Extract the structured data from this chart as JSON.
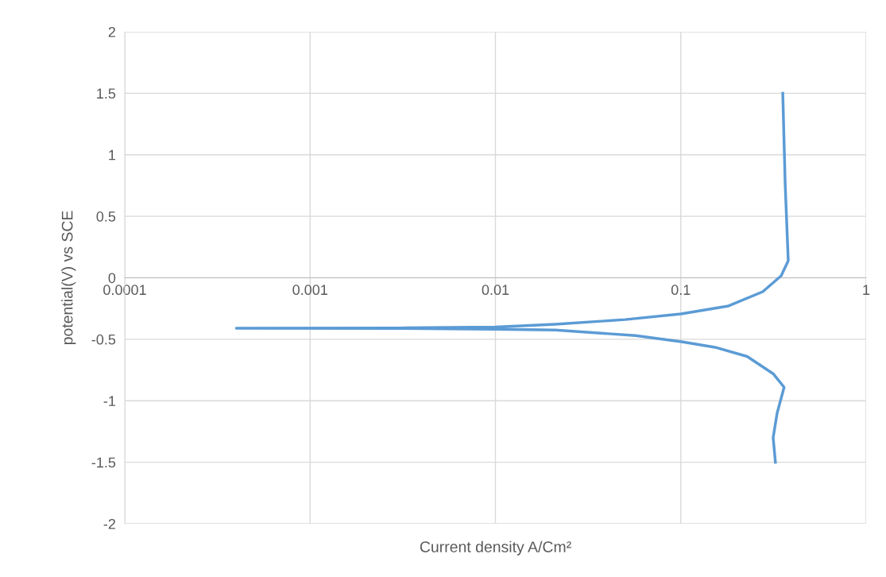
{
  "chart_data": {
    "type": "line",
    "xlabel": "Current density A/Cm²",
    "ylabel": "potential(V) vs SCE",
    "log": "x",
    "xlim": [
      0.0001,
      1
    ],
    "xticks": [
      0.0001,
      0.001,
      0.01,
      0.1,
      1
    ],
    "ylim": [
      -2,
      2
    ],
    "yticks": [
      -2,
      -1.5,
      -1,
      -0.5,
      0,
      0.5,
      1,
      1.5,
      2
    ],
    "grid": true,
    "marker": "none",
    "line_style": "solid",
    "series": [
      {
        "color": "#5b9bd5",
        "x": [
          0.324,
          0.315,
          0.331,
          0.361,
          0.315,
          0.228,
          0.153,
          0.101,
          0.057,
          0.021,
          0.01,
          0.003,
          0.0004,
          0.003,
          0.01,
          0.021,
          0.05,
          0.1,
          0.181,
          0.277,
          0.348,
          0.38,
          0.366,
          0.355
        ],
        "values": [
          -1.5,
          -1.3,
          -1.1,
          -0.89,
          -0.78,
          -0.64,
          -0.565,
          -0.52,
          -0.47,
          -0.425,
          -0.418,
          -0.412,
          -0.41,
          -0.408,
          -0.4,
          -0.378,
          -0.34,
          -0.294,
          -0.229,
          -0.113,
          0.016,
          0.139,
          0.75,
          1.5
        ]
      }
    ]
  }
}
